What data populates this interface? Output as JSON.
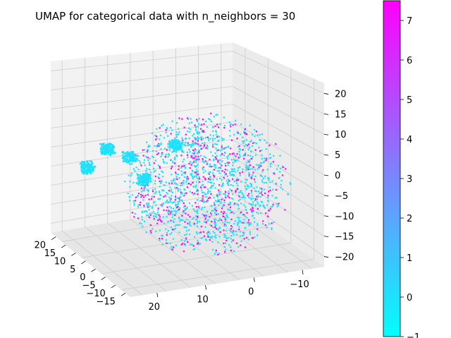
{
  "chart_data": {
    "type": "scatter",
    "dimensions": 3,
    "title": "UMAP for categorical data with n_neighbors = 30",
    "xlabel": "",
    "ylabel": "",
    "zlabel": "",
    "xlim": [
      -15,
      25
    ],
    "ylim": [
      -15,
      25
    ],
    "zlim": [
      -20,
      23
    ],
    "x_ticks": [
      "20",
      "15",
      "10",
      "5",
      "0",
      "−5",
      "−10",
      "−15"
    ],
    "y_ticks": [
      "20",
      "10",
      "0",
      "−10"
    ],
    "z_ticks": [
      "20",
      "15",
      "10",
      "5",
      "0",
      "−5",
      "−10",
      "−15",
      "−20"
    ],
    "colormap": "cool",
    "colormap_colors": [
      "#00ffff",
      "#ff00ff"
    ],
    "color_range": [
      -1,
      7.5
    ],
    "colorbar_ticks": [
      "7",
      "6",
      "5",
      "4",
      "3",
      "2",
      "1",
      "0",
      "−1"
    ],
    "grid": true,
    "note_points": "dense scatter of several thousand small markers; cyan (≈0) dominates, magenta (≈7) interspersed",
    "clusters": [
      {
        "x": 15,
        "y": 22,
        "z": 5,
        "value": 0
      },
      {
        "x": 12,
        "y": 18,
        "z": 4,
        "value": 0
      },
      {
        "x": 8,
        "y": 20,
        "z": -3,
        "value": 0
      },
      {
        "x": 18,
        "y": 25,
        "z": 0,
        "value": 0
      },
      {
        "x": 5,
        "y": 12,
        "z": 8,
        "value": 0
      }
    ]
  },
  "colors": {
    "pane": "#f2f2f2",
    "pane_side": "#ebebeb",
    "grid": "#cccccc",
    "cyan": "#00ffff",
    "magenta": "#ff00ff"
  }
}
